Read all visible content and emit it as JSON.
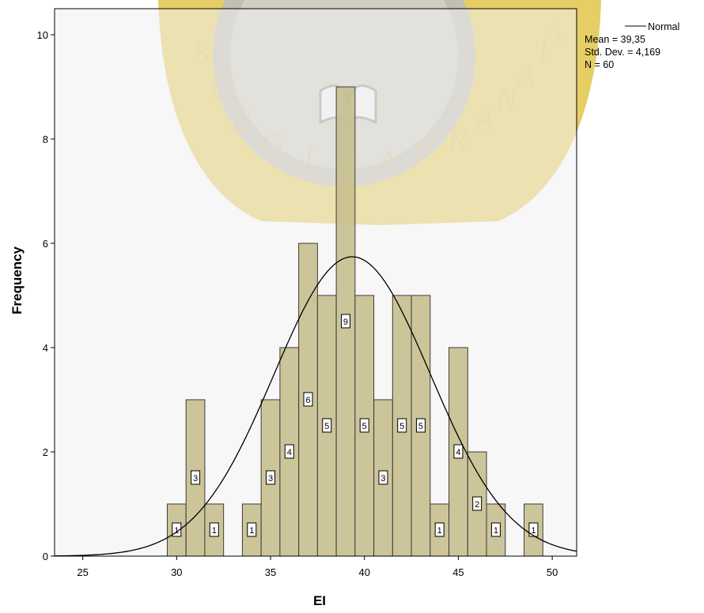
{
  "chart_data": {
    "type": "bar",
    "subtype": "histogram",
    "xlabel": "EI",
    "ylabel": "Frequency",
    "xlim": [
      23.5,
      51.3
    ],
    "ylim": [
      0,
      10.5
    ],
    "x_ticks": [
      25,
      30,
      35,
      40,
      45,
      50
    ],
    "y_ticks": [
      0,
      2,
      4,
      6,
      8,
      10
    ],
    "bin_width": 1,
    "bins": [
      {
        "x": 30,
        "count": 1
      },
      {
        "x": 31,
        "count": 3
      },
      {
        "x": 32,
        "count": 1
      },
      {
        "x": 34,
        "count": 1
      },
      {
        "x": 35,
        "count": 3
      },
      {
        "x": 36,
        "count": 4
      },
      {
        "x": 37,
        "count": 6
      },
      {
        "x": 38,
        "count": 5
      },
      {
        "x": 39,
        "count": 9
      },
      {
        "x": 40,
        "count": 5
      },
      {
        "x": 41,
        "count": 3
      },
      {
        "x": 42,
        "count": 5
      },
      {
        "x": 43,
        "count": 5
      },
      {
        "x": 44,
        "count": 1
      },
      {
        "x": 45,
        "count": 4
      },
      {
        "x": 46,
        "count": 2
      },
      {
        "x": 47,
        "count": 1
      },
      {
        "x": 49,
        "count": 1
      }
    ],
    "normal_curve": {
      "mean": 39.35,
      "sd": 4.169,
      "n": 60
    },
    "legend": {
      "series_label": "Normal",
      "stats": [
        "Mean = 39,35",
        "Std. Dev. = 4,169",
        "N = 60"
      ],
      "position": "top-right"
    },
    "grid": false
  },
  "watermark": {
    "letters": [
      "S",
      "O",
      "E",
      "G",
      "I",
      "J",
      "A",
      "P",
      "R",
      "A",
      "N",
      "A",
      "T",
      "A"
    ]
  },
  "colors": {
    "bar_fill": "#c8bf8f",
    "bar_stroke": "#3c3c3c",
    "plot_bg": "#f0f0f0",
    "watermark": "#e2c64a",
    "curve": "#000000"
  }
}
